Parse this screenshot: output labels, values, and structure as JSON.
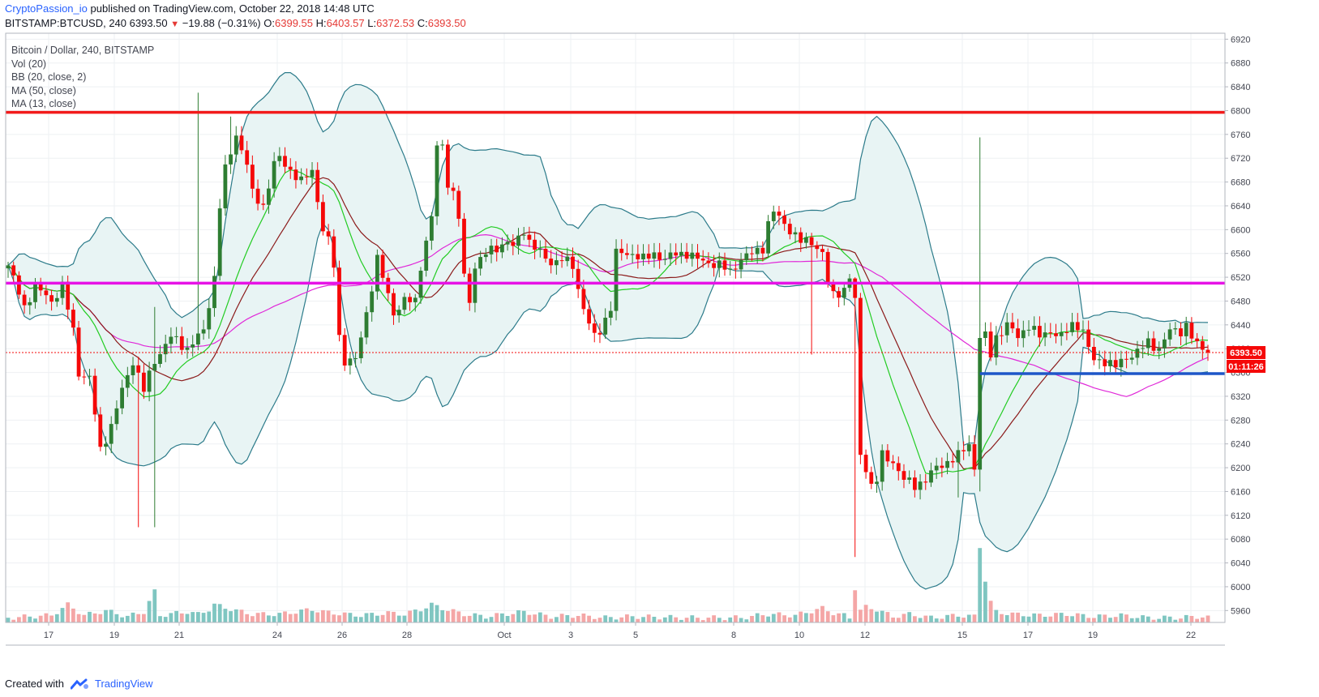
{
  "header": {
    "author": "CryptoPassion_io",
    "published_text": "published on TradingView.com, October 22, 2018 14:48 UTC",
    "symbol": "BITSTAMP:BTCUSD, 240",
    "last": "6393.50",
    "change": "−19.88 (−0.31%)",
    "open_label": "O:",
    "open": "6399.55",
    "high_label": "H:",
    "high": "6403.57",
    "low_label": "L:",
    "low": "6372.53",
    "close_label": "C:",
    "close": "6393.50"
  },
  "legend": {
    "title": "Bitcoin / Dollar, 240, BITSTAMP",
    "items": [
      "Vol (20)",
      "BB (20, close, 2)",
      "MA (50, close)",
      "MA (13, close)"
    ]
  },
  "price_badge": "6393.50",
  "countdown_badge": "01:11:26",
  "footer": {
    "created_with": "Created with",
    "brand": "TradingView"
  },
  "colors": {
    "up": "#2e7d32",
    "down": "#f50808",
    "vol_up": "#7fc6c1",
    "vol_down": "#f4a6a6",
    "bb_line": "#2c7b8a",
    "bb_fill": "#e8f4f4",
    "ma50": "#e028d8",
    "ma13": "#22cc22",
    "ma20": "#8b1a1a",
    "resistance": "#f21b1b",
    "pivot": "#e613e6",
    "support": "#1e56c8"
  },
  "chart_data": {
    "type": "candlestick",
    "timeframe": "240",
    "symbol": "BTCUSD",
    "ylim": [
      5940,
      6930
    ],
    "y_ticks": [
      5960,
      6000,
      6040,
      6080,
      6120,
      6160,
      6200,
      6240,
      6280,
      6320,
      6360,
      6400,
      6440,
      6480,
      6520,
      6560,
      6600,
      6640,
      6680,
      6720,
      6760,
      6800,
      6840,
      6880,
      6920
    ],
    "x_labels": [
      "17",
      "19",
      "21",
      "24",
      "26",
      "28",
      "Oct",
      "3",
      "5",
      "8",
      "10",
      "12",
      "15",
      "17",
      "19",
      "22"
    ],
    "horizontal_lines": [
      {
        "name": "resistance",
        "value": 6797,
        "color": "#f21b1b"
      },
      {
        "name": "pivot",
        "value": 6510,
        "color": "#e613e6"
      },
      {
        "name": "support",
        "value": 6358,
        "color": "#1e56c8"
      }
    ],
    "current_price": 6393.5,
    "anchors": {
      "close": [
        [
          0,
          6540
        ],
        [
          3,
          6470
        ],
        [
          5,
          6505
        ],
        [
          8,
          6480
        ],
        [
          10,
          6505
        ],
        [
          12,
          6430
        ],
        [
          13,
          6360
        ],
        [
          15,
          6350
        ],
        [
          17,
          6230
        ],
        [
          19,
          6270
        ],
        [
          21,
          6330
        ],
        [
          23,
          6380
        ],
        [
          25,
          6330
        ],
        [
          27,
          6380
        ],
        [
          30,
          6420
        ],
        [
          33,
          6400
        ],
        [
          36,
          6430
        ],
        [
          38,
          6520
        ],
        [
          39,
          6640
        ],
        [
          40,
          6700
        ],
        [
          42,
          6760
        ],
        [
          44,
          6710
        ],
        [
          45,
          6660
        ],
        [
          47,
          6640
        ],
        [
          49,
          6710
        ],
        [
          50,
          6720
        ],
        [
          52,
          6700
        ],
        [
          54,
          6680
        ],
        [
          56,
          6700
        ],
        [
          58,
          6600
        ],
        [
          59,
          6580
        ],
        [
          60,
          6540
        ],
        [
          61,
          6420
        ],
        [
          62,
          6380
        ],
        [
          64,
          6380
        ],
        [
          66,
          6460
        ],
        [
          68,
          6550
        ],
        [
          70,
          6490
        ],
        [
          71,
          6460
        ],
        [
          73,
          6480
        ],
        [
          75,
          6480
        ],
        [
          76,
          6540
        ],
        [
          78,
          6620
        ],
        [
          79,
          6740
        ],
        [
          80,
          6740
        ],
        [
          81,
          6680
        ],
        [
          82,
          6660
        ],
        [
          83,
          6620
        ],
        [
          84,
          6520
        ],
        [
          85,
          6480
        ],
        [
          86,
          6540
        ],
        [
          88,
          6560
        ],
        [
          90,
          6570
        ],
        [
          92,
          6580
        ],
        [
          93,
          6570
        ],
        [
          95,
          6600
        ],
        [
          96,
          6580
        ],
        [
          98,
          6560
        ],
        [
          100,
          6545
        ],
        [
          102,
          6550
        ],
        [
          104,
          6540
        ],
        [
          105,
          6500
        ],
        [
          107,
          6440
        ],
        [
          108,
          6420
        ],
        [
          109,
          6430
        ],
        [
          111,
          6470
        ],
        [
          112,
          6560
        ],
        [
          115,
          6560
        ],
        [
          117,
          6550
        ],
        [
          119,
          6560
        ],
        [
          121,
          6550
        ],
        [
          123,
          6560
        ],
        [
          125,
          6560
        ],
        [
          127,
          6550
        ],
        [
          129,
          6545
        ],
        [
          131,
          6540
        ],
        [
          133,
          6530
        ],
        [
          135,
          6550
        ],
        [
          137,
          6560
        ],
        [
          139,
          6570
        ],
        [
          140,
          6610
        ],
        [
          141,
          6630
        ],
        [
          142,
          6620
        ],
        [
          144,
          6600
        ],
        [
          146,
          6580
        ],
        [
          148,
          6580
        ],
        [
          150,
          6560
        ],
        [
          151,
          6510
        ],
        [
          152,
          6490
        ],
        [
          154,
          6500
        ],
        [
          155,
          6520
        ],
        [
          156,
          6480
        ],
        [
          157,
          6220
        ],
        [
          158,
          6200
        ],
        [
          159,
          6170
        ],
        [
          160,
          6180
        ],
        [
          161,
          6220
        ],
        [
          163,
          6210
        ],
        [
          165,
          6180
        ],
        [
          167,
          6170
        ],
        [
          169,
          6180
        ],
        [
          171,
          6200
        ],
        [
          173,
          6210
        ],
        [
          175,
          6220
        ],
        [
          177,
          6240
        ],
        [
          178,
          6200
        ],
        [
          179,
          6420
        ],
        [
          180,
          6420
        ],
        [
          181,
          6390
        ],
        [
          182,
          6420
        ],
        [
          184,
          6440
        ],
        [
          186,
          6420
        ],
        [
          188,
          6440
        ],
        [
          190,
          6420
        ],
        [
          192,
          6430
        ],
        [
          194,
          6420
        ],
        [
          196,
          6440
        ],
        [
          197,
          6440
        ],
        [
          198,
          6430
        ],
        [
          199,
          6400
        ],
        [
          200,
          6380
        ],
        [
          202,
          6380
        ],
        [
          204,
          6370
        ],
        [
          206,
          6385
        ],
        [
          208,
          6395
        ],
        [
          210,
          6410
        ],
        [
          212,
          6400
        ],
        [
          214,
          6430
        ],
        [
          216,
          6430
        ],
        [
          217,
          6440
        ],
        [
          218,
          6420
        ],
        [
          219,
          6405
        ],
        [
          220,
          6400
        ],
        [
          221,
          6393.5
        ]
      ],
      "volume": [
        [
          0,
          8
        ],
        [
          8,
          12
        ],
        [
          11,
          30
        ],
        [
          14,
          12
        ],
        [
          18,
          20
        ],
        [
          22,
          10
        ],
        [
          25,
          18
        ],
        [
          27,
          52
        ],
        [
          28,
          12
        ],
        [
          33,
          18
        ],
        [
          35,
          14
        ],
        [
          37,
          22
        ],
        [
          38,
          30
        ],
        [
          42,
          20
        ],
        [
          45,
          14
        ],
        [
          50,
          14
        ],
        [
          56,
          22
        ],
        [
          58,
          18
        ],
        [
          60,
          16
        ],
        [
          62,
          14
        ],
        [
          65,
          12
        ],
        [
          70,
          16
        ],
        [
          73,
          14
        ],
        [
          76,
          22
        ],
        [
          78,
          30
        ],
        [
          80,
          24
        ],
        [
          84,
          14
        ],
        [
          88,
          10
        ],
        [
          95,
          18
        ],
        [
          100,
          10
        ],
        [
          105,
          12
        ],
        [
          110,
          8
        ],
        [
          115,
          10
        ],
        [
          125,
          8
        ],
        [
          135,
          8
        ],
        [
          140,
          14
        ],
        [
          145,
          12
        ],
        [
          150,
          24
        ],
        [
          152,
          16
        ],
        [
          154,
          12
        ],
        [
          155,
          8
        ],
        [
          156,
          58
        ],
        [
          157,
          20
        ],
        [
          158,
          26
        ],
        [
          160,
          22
        ],
        [
          163,
          10
        ],
        [
          166,
          14
        ],
        [
          170,
          8
        ],
        [
          175,
          12
        ],
        [
          178,
          10
        ],
        [
          179,
          128
        ],
        [
          180,
          72
        ],
        [
          181,
          34
        ],
        [
          182,
          18
        ],
        [
          185,
          14
        ],
        [
          190,
          12
        ],
        [
          195,
          14
        ],
        [
          200,
          10
        ],
        [
          205,
          12
        ],
        [
          210,
          8
        ],
        [
          215,
          8
        ],
        [
          220,
          10
        ],
        [
          221,
          8
        ]
      ]
    },
    "spikes": [
      {
        "index": 24,
        "low": 6100
      },
      {
        "index": 27,
        "high": 6470,
        "low": 6100
      },
      {
        "index": 35,
        "high": 6830
      },
      {
        "index": 41,
        "high": 6790
      },
      {
        "index": 148,
        "low": 6390
      },
      {
        "index": 156,
        "high": 6520,
        "low": 6050,
        "volume_color": "down"
      },
      {
        "index": 175,
        "low": 6150
      },
      {
        "index": 179,
        "high": 6755,
        "low": 6160
      }
    ]
  }
}
